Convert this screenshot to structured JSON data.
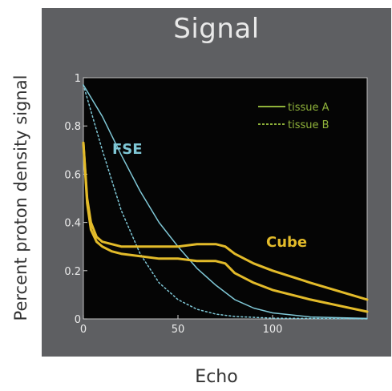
{
  "chart_data": {
    "type": "line",
    "title": "Signal",
    "xlabel": "Echo",
    "ylabel": "Percent proton density signal",
    "xlim": [
      0,
      150
    ],
    "ylim": [
      0,
      1
    ],
    "x_ticks": [
      "0",
      "50",
      "100"
    ],
    "y_ticks": [
      "0",
      "0.2",
      "0.4",
      "0.6",
      "0.8",
      "1"
    ],
    "legend": {
      "position": "top-right",
      "entries": [
        {
          "label": "tissue A",
          "style": "solid"
        },
        {
          "label": "tissue B",
          "style": "dotted"
        }
      ]
    },
    "annotations": [
      {
        "text": "FSE",
        "color": "#7fc7d6"
      },
      {
        "text": "Cube",
        "color": "#e3bb2a"
      }
    ],
    "series": [
      {
        "group": "FSE",
        "style": "solid",
        "color": "#7fc7d6",
        "x": [
          0,
          10,
          20,
          30,
          40,
          50,
          60,
          70,
          80,
          90,
          100,
          120,
          150
        ],
        "y": [
          0.97,
          0.84,
          0.68,
          0.53,
          0.4,
          0.3,
          0.21,
          0.14,
          0.08,
          0.045,
          0.025,
          0.008,
          0.002
        ]
      },
      {
        "group": "FSE",
        "style": "dotted",
        "color": "#7fc7d6",
        "x": [
          0,
          10,
          20,
          30,
          40,
          50,
          60,
          70,
          80,
          100,
          150
        ],
        "y": [
          0.97,
          0.7,
          0.45,
          0.27,
          0.15,
          0.08,
          0.04,
          0.02,
          0.01,
          0.003,
          0.0
        ]
      },
      {
        "group": "Cube",
        "style": "solid",
        "color": "#e3bb2a",
        "x": [
          0,
          2,
          4,
          7,
          10,
          15,
          20,
          30,
          40,
          50,
          60,
          70,
          75,
          80,
          90,
          100,
          120,
          150
        ],
        "y": [
          0.73,
          0.5,
          0.4,
          0.34,
          0.32,
          0.31,
          0.3,
          0.3,
          0.3,
          0.3,
          0.31,
          0.31,
          0.3,
          0.27,
          0.23,
          0.2,
          0.15,
          0.08
        ]
      },
      {
        "group": "Cube",
        "style": "solid",
        "color": "#e3bb2a",
        "x": [
          0,
          2,
          4,
          7,
          10,
          15,
          20,
          30,
          40,
          50,
          60,
          70,
          75,
          80,
          90,
          100,
          120,
          150
        ],
        "y": [
          0.73,
          0.48,
          0.37,
          0.32,
          0.3,
          0.28,
          0.27,
          0.26,
          0.25,
          0.25,
          0.24,
          0.24,
          0.23,
          0.19,
          0.15,
          0.12,
          0.08,
          0.03
        ]
      }
    ]
  }
}
